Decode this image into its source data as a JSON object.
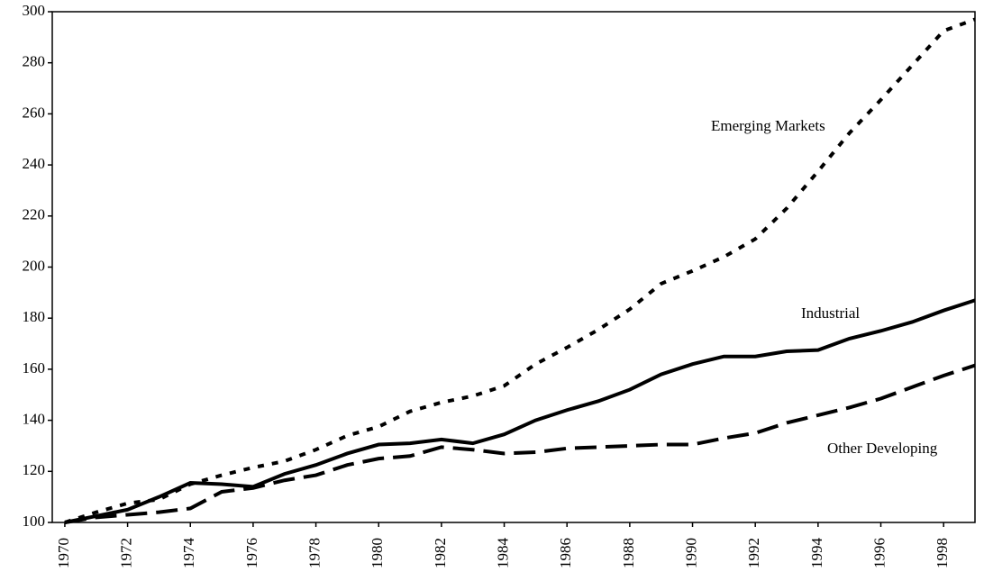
{
  "chart_data": {
    "type": "line",
    "x": [
      1970,
      1971,
      1972,
      1973,
      1974,
      1975,
      1976,
      1977,
      1978,
      1979,
      1980,
      1981,
      1982,
      1983,
      1984,
      1985,
      1986,
      1987,
      1988,
      1989,
      1990,
      1991,
      1992,
      1993,
      1994,
      1995,
      1996,
      1997,
      1998,
      1999
    ],
    "series": [
      {
        "name": "Emerging Markets",
        "color": "#000000",
        "dash": "dotted",
        "values": [
          100,
          104,
          107.5,
          109,
          115,
          118.5,
          121.5,
          124,
          128.5,
          134,
          137.5,
          143.5,
          147,
          149.5,
          153.5,
          162,
          168.5,
          175.5,
          183.5,
          193.5,
          198.5,
          204,
          211,
          223,
          237.5,
          252.5,
          265.5,
          279,
          292.5,
          297
        ]
      },
      {
        "name": "Industrial",
        "color": "#000000",
        "dash": "solid",
        "values": [
          100,
          102.5,
          105,
          110,
          115.5,
          115,
          114,
          119,
          122.5,
          127,
          130.5,
          131,
          132.5,
          131,
          134.5,
          140,
          144,
          147.5,
          152,
          158,
          162,
          165,
          165,
          167,
          167.5,
          172,
          175,
          178.5,
          183,
          187
        ]
      },
      {
        "name": "Other Developing",
        "color": "#000000",
        "dash": "dashed",
        "values": [
          100,
          102,
          103,
          104,
          105.5,
          112,
          113.5,
          116.5,
          118.5,
          122.5,
          125,
          126,
          129.5,
          128.5,
          127,
          127.5,
          129,
          129.5,
          130,
          130.5,
          130.5,
          133,
          135,
          139,
          142,
          145,
          148.5,
          153,
          157.5,
          161.5
        ]
      }
    ],
    "xlim": [
      1969.6,
      1999
    ],
    "xticks": [
      1970,
      1972,
      1974,
      1976,
      1978,
      1980,
      1982,
      1984,
      1986,
      1988,
      1990,
      1992,
      1994,
      1996,
      1998
    ],
    "ylim": [
      100,
      300
    ],
    "yticks": [
      100,
      120,
      140,
      160,
      180,
      200,
      220,
      240,
      260,
      280,
      300
    ],
    "grid": false
  }
}
